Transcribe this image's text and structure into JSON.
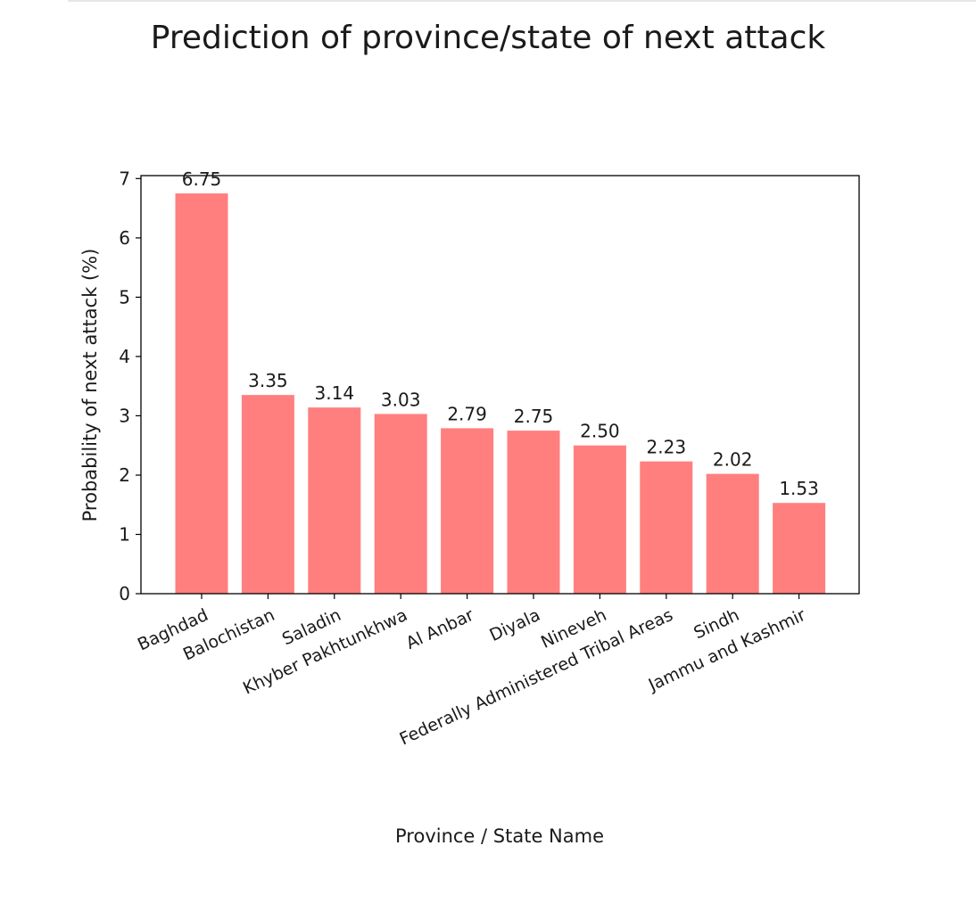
{
  "chart_data": {
    "type": "bar",
    "title": "Prediction of province/state of next attack",
    "xlabel": "Province / State Name",
    "ylabel": "Probability of next attack (%)",
    "categories": [
      "Baghdad",
      "Balochistan",
      "Saladin",
      "Khyber Pakhtunkhwa",
      "Al Anbar",
      "Diyala",
      "Nineveh",
      "Federally Administered Tribal Areas",
      "Sindh",
      "Jammu and Kashmir"
    ],
    "values": [
      6.75,
      3.35,
      3.14,
      3.03,
      2.79,
      2.75,
      2.5,
      2.23,
      2.02,
      1.53
    ],
    "data_labels": [
      "6.75",
      "3.35",
      "3.14",
      "3.03",
      "2.79",
      "2.75",
      "2.50",
      "2.23",
      "2.02",
      "1.53"
    ],
    "ylim": [
      0,
      7.05
    ],
    "yticks": [
      0,
      1,
      2,
      3,
      4,
      5,
      6,
      7
    ],
    "bar_color": "#ff7f7f",
    "grid": false,
    "legend": false
  }
}
